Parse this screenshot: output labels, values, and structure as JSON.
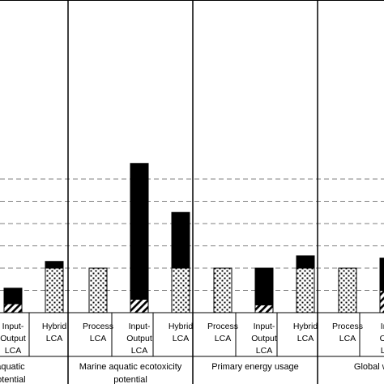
{
  "chart_data": {
    "type": "bar",
    "stacked": true,
    "grid": "horizontal dashed",
    "groups": [
      {
        "label_lines": [
          "ter aquatic",
          "ty potential"
        ],
        "bars": [
          {
            "category": "Input-Output LCA",
            "cat_lines": [
              "Input-",
              "Output",
              "LCA"
            ],
            "hatched": 0.4,
            "dotted": 0,
            "solid": 0.7
          },
          {
            "category": "Hybrid LCA",
            "cat_lines": [
              "Hybrid",
              "LCA"
            ],
            "hatched": 0,
            "dotted": 2.0,
            "solid": 0.3
          }
        ]
      },
      {
        "label_lines": [
          "Marine aquatic ecotoxicity",
          "potential"
        ],
        "bars": [
          {
            "category": "Process LCA",
            "cat_lines": [
              "Process",
              "LCA"
            ],
            "hatched": 0,
            "dotted": 2.0,
            "solid": 0
          },
          {
            "category": "Input-Output LCA",
            "cat_lines": [
              "Input-",
              "Output",
              "LCA"
            ],
            "hatched": 0.6,
            "dotted": 0,
            "solid": 6.1
          },
          {
            "category": "Hybrid LCA",
            "cat_lines": [
              "Hybrid",
              "LCA"
            ],
            "hatched": 0,
            "dotted": 2.0,
            "solid": 2.5
          }
        ]
      },
      {
        "label_lines": [
          "Primary energy usage"
        ],
        "bars": [
          {
            "category": "Process LCA",
            "cat_lines": [
              "Process",
              "LCA"
            ],
            "hatched": 0,
            "dotted": 2.0,
            "solid": 0
          },
          {
            "category": "Input-Output LCA",
            "cat_lines": [
              "Input-",
              "Output",
              "LCA"
            ],
            "hatched": 0.35,
            "dotted": 0,
            "solid": 1.65
          },
          {
            "category": "Hybrid LCA",
            "cat_lines": [
              "Hybrid",
              "LCA"
            ],
            "hatched": 0,
            "dotted": 2.0,
            "solid": 0.55
          }
        ]
      },
      {
        "label_lines": [
          "Global warmi"
        ],
        "bars": [
          {
            "category": "Process LCA",
            "cat_lines": [
              "Process",
              "LCA"
            ],
            "hatched": 0,
            "dotted": 2.0,
            "solid": 0
          },
          {
            "category": "Input-Output LCA",
            "cat_lines": [
              "Inpu",
              "Outp",
              "LCA"
            ],
            "hatched": 1.0,
            "dotted": 0,
            "solid": 1.45
          }
        ]
      }
    ],
    "ylim": [
      0,
      7.0
    ],
    "gridlines": [
      1,
      2,
      3,
      4,
      5,
      6
    ]
  }
}
